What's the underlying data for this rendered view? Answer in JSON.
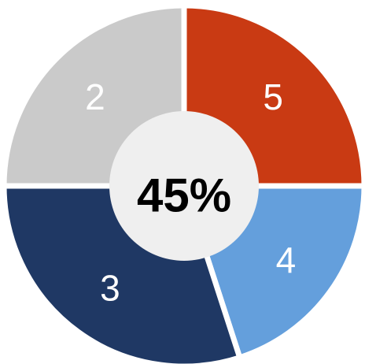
{
  "chart_data": {
    "type": "donut",
    "categories": [
      "5",
      "4",
      "3",
      "2"
    ],
    "values": [
      25,
      20,
      30,
      25
    ],
    "colors": [
      "#c93a13",
      "#649fdc",
      "#1f3864",
      "#cacaca"
    ],
    "center_label": "45%"
  }
}
